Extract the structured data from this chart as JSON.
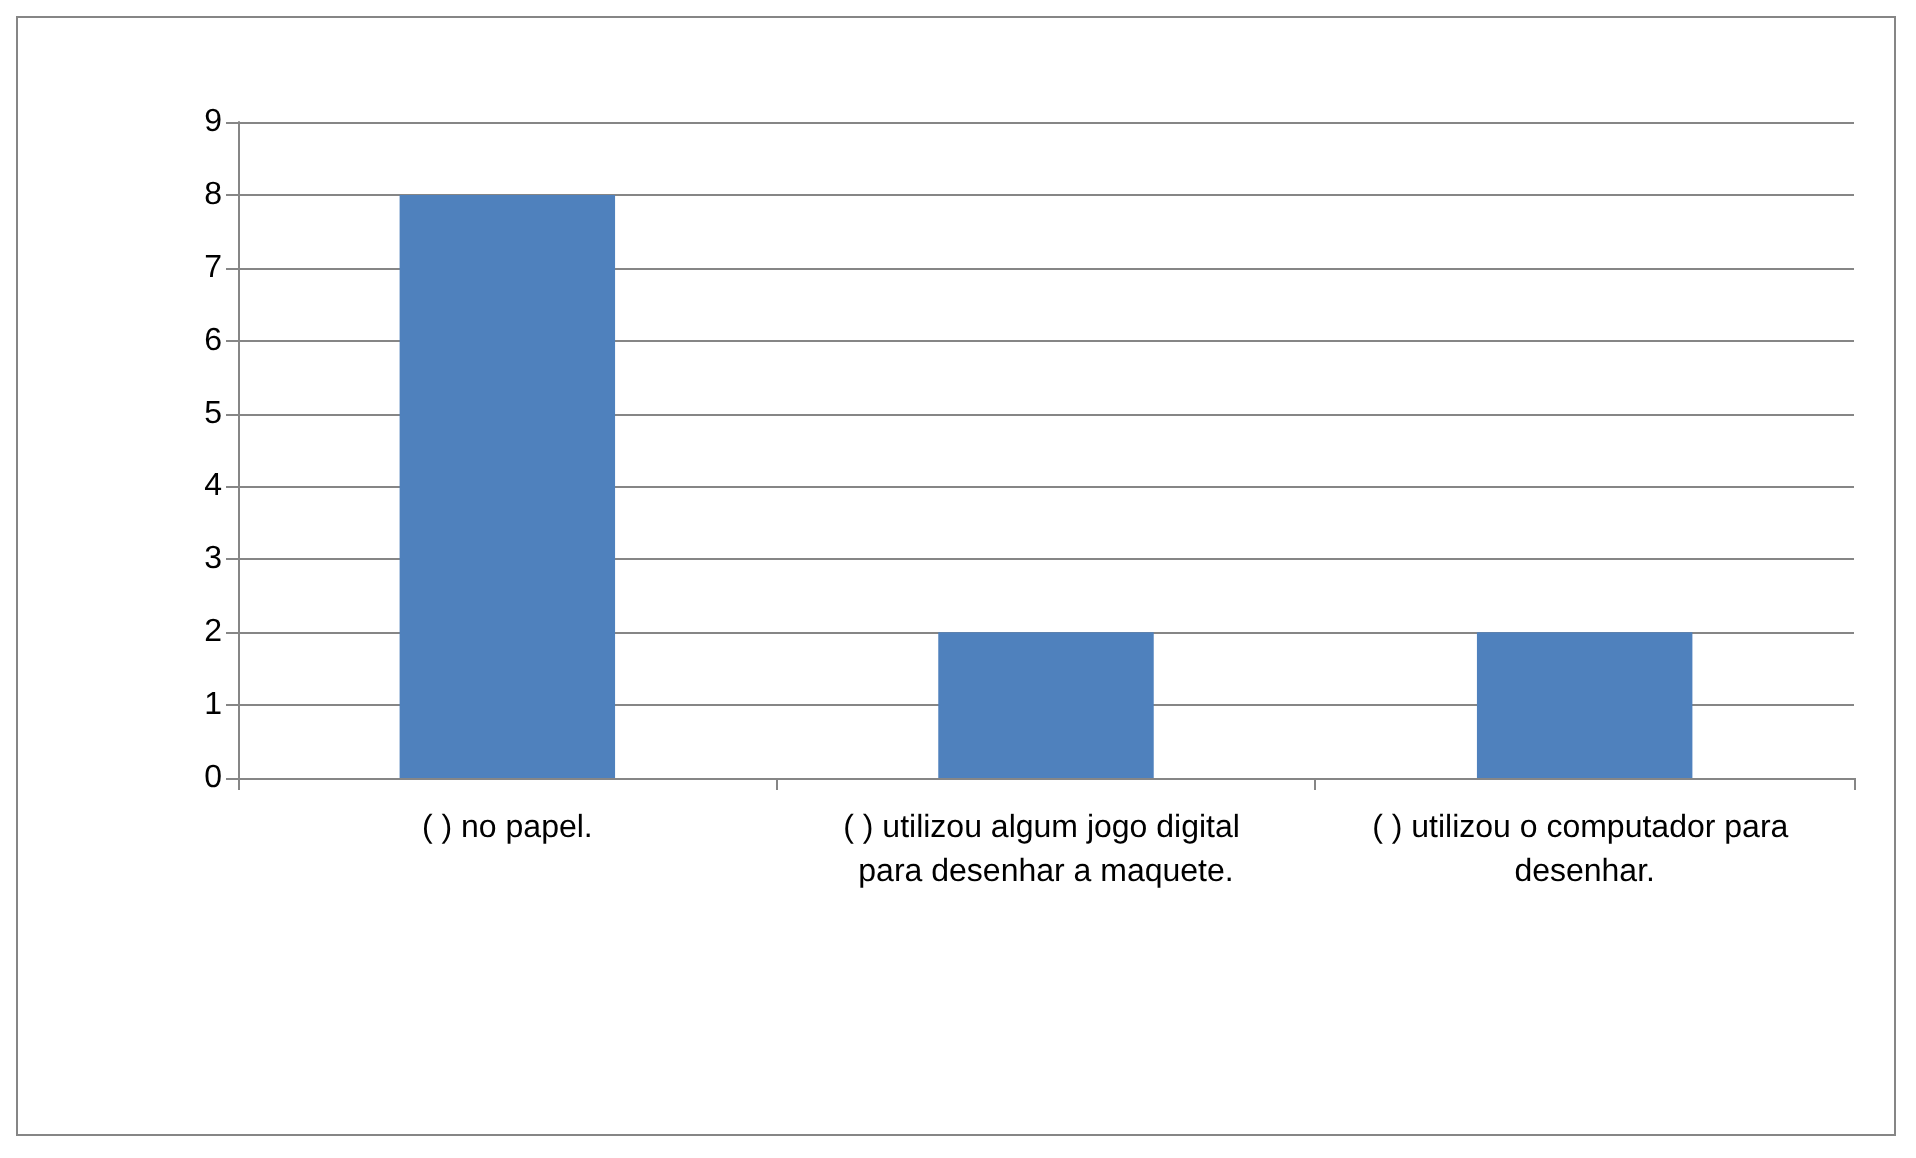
{
  "chart_data": {
    "type": "bar",
    "categories": [
      "( ) no papel.",
      "( ) utilizou algum jogo digital para desenhar a maquete.",
      "( ) utilizou o computador para desenhar."
    ],
    "values": [
      8,
      2,
      2
    ],
    "color": "#4f81bd",
    "ylim": [
      0,
      9
    ],
    "yticks": [
      0,
      1,
      2,
      3,
      4,
      5,
      6,
      7,
      8,
      9
    ],
    "grid": "y"
  }
}
